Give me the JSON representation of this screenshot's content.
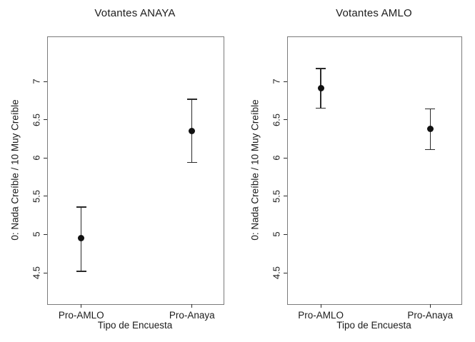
{
  "figure": {
    "background": "#ffffff",
    "box_color": "#7b7b7b",
    "marker_color": "#111111",
    "text_color": "#1c1c1c"
  },
  "chart_data": [
    {
      "type": "scatter",
      "title": "Votantes ANAYA",
      "xlabel": "Tipo de Encuesta",
      "ylabel": "0: Nada Creíble / 10 Muy Creíble",
      "categories": [
        "Pro-AMLO",
        "Pro-Anaya"
      ],
      "yticks": [
        4.5,
        5,
        5.5,
        6,
        6.5,
        7
      ],
      "ylim": [
        4.09,
        7.58
      ],
      "grid": false,
      "legend": false,
      "series": [
        {
          "name": "mean",
          "values": [
            4.95,
            6.35
          ]
        },
        {
          "name": "ci_lower",
          "values": [
            4.52,
            5.94
          ]
        },
        {
          "name": "ci_upper",
          "values": [
            5.36,
            6.77
          ]
        }
      ]
    },
    {
      "type": "scatter",
      "title": "Votantes AMLO",
      "xlabel": "Tipo de Encuesta",
      "ylabel": "0: Nada Creíble / 10 Muy Creíble",
      "categories": [
        "Pro-AMLO",
        "Pro-Anaya"
      ],
      "yticks": [
        4.5,
        5,
        5.5,
        6,
        6.5,
        7
      ],
      "ylim": [
        4.09,
        7.58
      ],
      "grid": false,
      "legend": false,
      "series": [
        {
          "name": "mean",
          "values": [
            6.91,
            6.38
          ]
        },
        {
          "name": "ci_lower",
          "values": [
            6.65,
            6.11
          ]
        },
        {
          "name": "ci_upper",
          "values": [
            7.17,
            6.64
          ]
        }
      ]
    }
  ]
}
